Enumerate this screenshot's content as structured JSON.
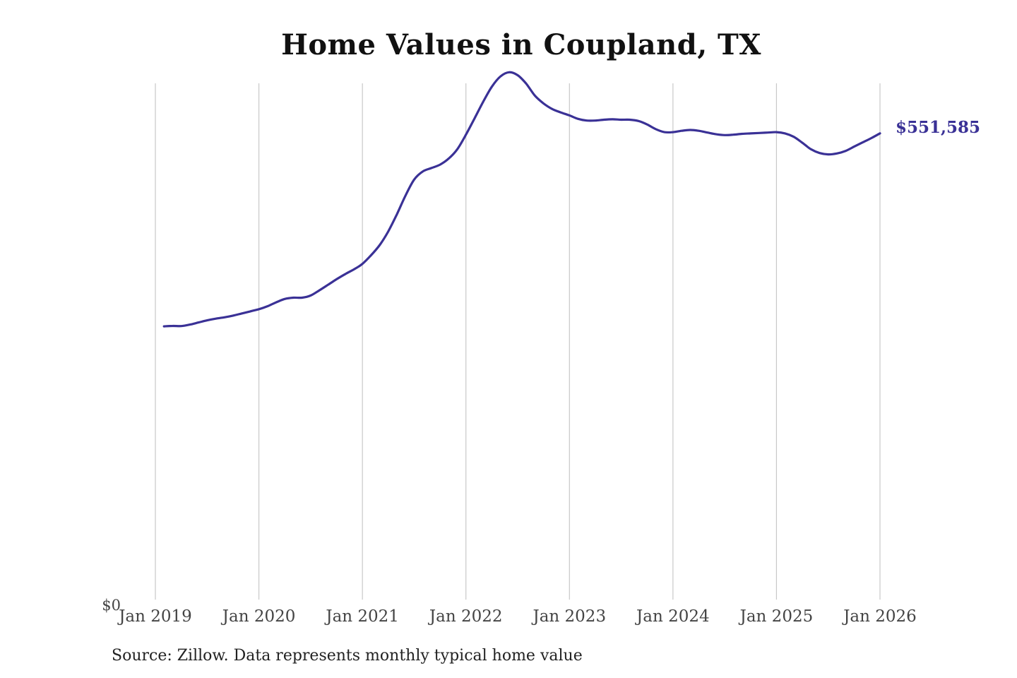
{
  "chart_data": {
    "type": "line",
    "title": "Home Values in Coupland, TX",
    "xlabel": "",
    "ylabel": "",
    "y_tick_labels": [
      {
        "value": 0,
        "label": "$0"
      }
    ],
    "ylim": [
      0,
      610000
    ],
    "x_ticks": [
      {
        "label": "Jan 2019",
        "value": 2019.0
      },
      {
        "label": "Jan 2020",
        "value": 2020.0
      },
      {
        "label": "Jan 2021",
        "value": 2021.0
      },
      {
        "label": "Jan 2022",
        "value": 2022.0
      },
      {
        "label": "Jan 2023",
        "value": 2023.0
      },
      {
        "label": "Jan 2024",
        "value": 2024.0
      },
      {
        "label": "Jan 2025",
        "value": 2025.0
      },
      {
        "label": "Jan 2026",
        "value": 2026.0
      }
    ],
    "grid": {
      "vertical": true,
      "horizontal": false
    },
    "series": [
      {
        "color": "#3a3196",
        "end_label": "$551,585",
        "x": [
          2019.083,
          2019.167,
          2019.25,
          2019.333,
          2019.417,
          2019.5,
          2019.583,
          2019.667,
          2019.75,
          2019.833,
          2019.917,
          2020.0,
          2020.083,
          2020.167,
          2020.25,
          2020.333,
          2020.417,
          2020.5,
          2020.583,
          2020.667,
          2020.75,
          2020.833,
          2020.917,
          2021.0,
          2021.083,
          2021.167,
          2021.25,
          2021.333,
          2021.417,
          2021.5,
          2021.583,
          2021.667,
          2021.75,
          2021.833,
          2021.917,
          2022.0,
          2022.083,
          2022.167,
          2022.25,
          2022.333,
          2022.417,
          2022.5,
          2022.583,
          2022.667,
          2022.75,
          2022.833,
          2022.917,
          2023.0,
          2023.083,
          2023.167,
          2023.25,
          2023.333,
          2023.417,
          2023.5,
          2023.583,
          2023.667,
          2023.75,
          2023.833,
          2023.917,
          2024.0,
          2024.083,
          2024.167,
          2024.25,
          2024.333,
          2024.417,
          2024.5,
          2024.583,
          2024.667,
          2024.75,
          2024.833,
          2024.917,
          2025.0,
          2025.083,
          2025.167,
          2025.25,
          2025.333,
          2025.417,
          2025.5,
          2025.583,
          2025.667,
          2025.75,
          2025.833,
          2025.917,
          2026.0
        ],
        "y": [
          326000,
          326500,
          326300,
          328000,
          330500,
          333000,
          335000,
          336500,
          338500,
          341000,
          343500,
          346000,
          349500,
          354000,
          358000,
          359500,
          359500,
          362000,
          368000,
          374500,
          381000,
          387000,
          392500,
          399000,
          409000,
          421000,
          437000,
          457000,
          479000,
          497500,
          507000,
          511000,
          515000,
          522000,
          533000,
          550000,
          569000,
          588500,
          606000,
          618000,
          623000,
          619500,
          609500,
          595500,
          586500,
          580000,
          576000,
          572500,
          568500,
          566500,
          566500,
          567500,
          568000,
          567500,
          567500,
          566000,
          562000,
          556500,
          553000,
          553000,
          554500,
          555500,
          554500,
          552500,
          550500,
          549500,
          550000,
          551000,
          551500,
          552000,
          552500,
          553000,
          551500,
          547500,
          540500,
          533000,
          528500,
          527000,
          528000,
          531000,
          536000,
          541000,
          546000,
          551585
        ]
      }
    ]
  },
  "footer": {
    "source": "Source: Zillow. Data represents monthly typical home value"
  }
}
